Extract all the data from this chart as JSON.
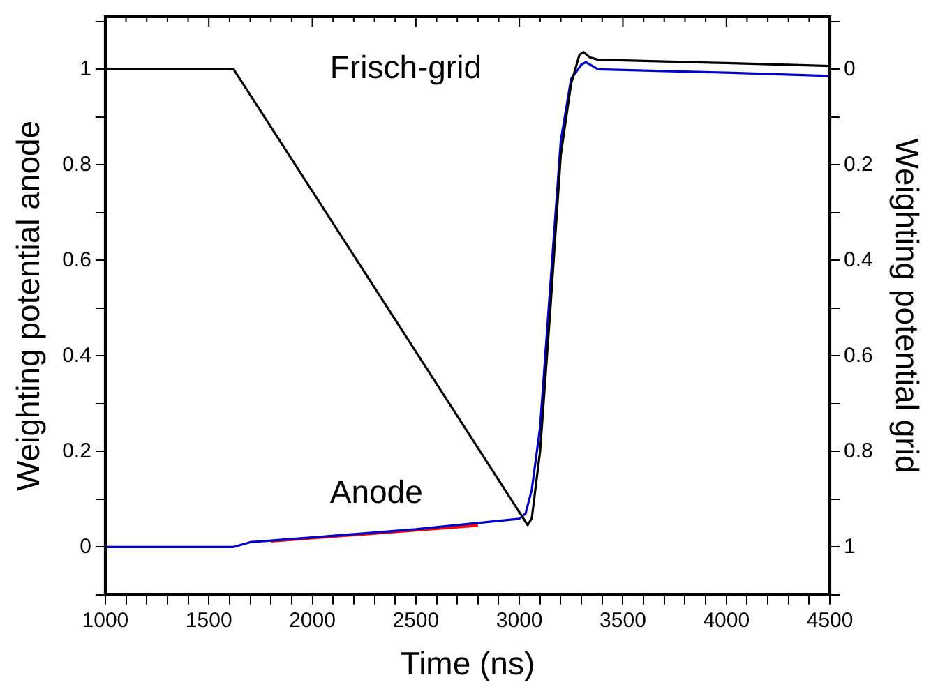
{
  "chart_data": {
    "type": "line",
    "xlabel": "Time (ns)",
    "ylabel": "Weighting potential anode",
    "y2label": "Weighting potential grid",
    "annotations": [
      "Frisch-grid",
      "Anode"
    ],
    "xlim": [
      1000,
      4500
    ],
    "ylim": [
      -0.1,
      1.11
    ],
    "y2lim": [
      1.1,
      -0.11
    ],
    "xticks": [
      1000,
      {
        "value": 1100,
        "label": null
      },
      {
        "value": 1200,
        "label": null
      },
      {
        "value": 1300,
        "label": null
      },
      {
        "value": 1400,
        "label": null
      },
      1500,
      {
        "value": 1600,
        "label": null
      },
      {
        "value": 1700,
        "label": null
      },
      {
        "value": 1800,
        "label": null
      },
      {
        "value": 1900,
        "label": null
      },
      2000,
      {
        "value": 2100,
        "label": null
      },
      {
        "value": 2200,
        "label": null
      },
      {
        "value": 2300,
        "label": null
      },
      {
        "value": 2400,
        "label": null
      },
      2500,
      {
        "value": 2600,
        "label": null
      },
      {
        "value": 2700,
        "label": null
      },
      {
        "value": 2800,
        "label": null
      },
      {
        "value": 2900,
        "label": null
      },
      3000,
      {
        "value": 3100,
        "label": null
      },
      {
        "value": 3200,
        "label": null
      },
      {
        "value": 3300,
        "label": null
      },
      {
        "value": 3400,
        "label": null
      },
      3500,
      {
        "value": 3600,
        "label": null
      },
      {
        "value": 3700,
        "label": null
      },
      {
        "value": 3800,
        "label": null
      },
      {
        "value": 3900,
        "label": null
      },
      4000,
      {
        "value": 4100,
        "label": null
      },
      {
        "value": 4200,
        "label": null
      },
      {
        "value": 4300,
        "label": null
      },
      {
        "value": 4400,
        "label": null
      },
      4500
    ],
    "yticks": [
      {
        "value": -0.1,
        "label": null
      },
      0,
      {
        "value": 0.1,
        "label": null
      },
      0.2,
      {
        "value": 0.3,
        "label": null
      },
      0.4,
      {
        "value": 0.5,
        "label": null
      },
      0.6,
      {
        "value": 0.7,
        "label": null
      },
      0.8,
      {
        "value": 0.9,
        "label": null
      },
      1,
      {
        "value": 1.1,
        "label": null
      }
    ],
    "y2ticks": [
      {
        "value": -0.1,
        "label": null
      },
      0,
      {
        "value": 0.1,
        "label": null
      },
      0.2,
      {
        "value": 0.3,
        "label": null
      },
      0.4,
      {
        "value": 0.5,
        "label": null
      },
      0.6,
      {
        "value": 0.7,
        "label": null
      },
      0.8,
      {
        "value": 0.9,
        "label": null
      },
      1,
      {
        "value": 1.1,
        "label": null
      }
    ],
    "grid": false,
    "legend": false,
    "marker": "none",
    "line_style": "solid",
    "series": [
      {
        "color": "#000000",
        "axis": "y2",
        "x": [
          1000,
          1620,
          3040,
          3060,
          3100,
          3150,
          3200,
          3250,
          3290,
          3310,
          3340,
          3380,
          4000,
          4500
        ],
        "values": [
          0,
          0,
          0.954,
          0.94,
          0.8,
          0.5,
          0.18,
          0.03,
          -0.03,
          -0.036,
          -0.025,
          -0.02,
          -0.013,
          -0.007
        ]
      },
      {
        "color": "#0000cc",
        "x": [
          1000,
          1620,
          1700,
          2000,
          2500,
          3000,
          3030,
          3060,
          3100,
          3150,
          3200,
          3250,
          3300,
          3321,
          3380,
          4000,
          4500
        ],
        "values": [
          0,
          0,
          0.01,
          0.02,
          0.037,
          0.059,
          0.07,
          0.12,
          0.25,
          0.55,
          0.85,
          0.98,
          1.01,
          1.015,
          1.0,
          0.993,
          0.986
        ]
      },
      {
        "color": "#ff0000",
        "x": [
          1800,
          2800
        ],
        "values": [
          0.012,
          0.045
        ]
      }
    ]
  }
}
